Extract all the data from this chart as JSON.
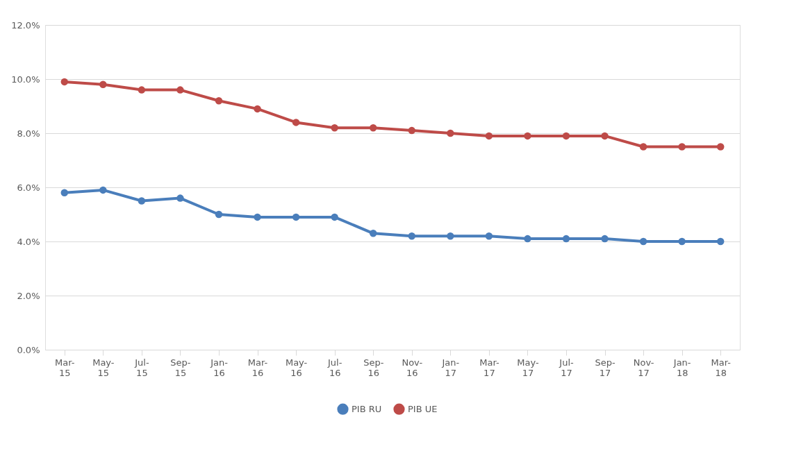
{
  "chart_data": {
    "type": "line",
    "categories": [
      "Mar-15",
      "May-15",
      "Jul-15",
      "Sep-15",
      "Jan-16",
      "Mar-16",
      "May-16",
      "Jul-16",
      "Sep-16",
      "Nov-16",
      "Jan-17",
      "Mar-17",
      "May-17",
      "Jul-17",
      "Sep-17",
      "Nov-17",
      "Jan-18",
      "Mar-18"
    ],
    "series": [
      {
        "name": "PIB RU",
        "color": "#4a7ebb",
        "values": [
          5.8,
          5.9,
          5.5,
          5.6,
          5.0,
          4.9,
          4.9,
          4.9,
          4.3,
          4.2,
          4.2,
          4.2,
          4.1,
          4.1,
          4.1,
          4.0,
          4.0,
          4.0
        ]
      },
      {
        "name": "PIB UE",
        "color": "#be4b48",
        "values": [
          9.9,
          9.8,
          9.6,
          9.6,
          9.2,
          8.9,
          8.4,
          8.2,
          8.2,
          8.1,
          8.0,
          7.9,
          7.9,
          7.9,
          7.9,
          7.5,
          7.5,
          7.5
        ]
      }
    ],
    "ylim": [
      0,
      12
    ],
    "yticks": [
      {
        "value": 0,
        "label": "0.0%"
      },
      {
        "value": 2,
        "label": "2.0%"
      },
      {
        "value": 4,
        "label": "4.0%"
      },
      {
        "value": 6,
        "label": "6.0%"
      },
      {
        "value": 8,
        "label": "8.0%"
      },
      {
        "value": 10,
        "label": "10.0%"
      },
      {
        "value": 12,
        "label": "12.0%"
      }
    ],
    "grid": "y",
    "legend": "bottom",
    "marker": "circle",
    "line_style": "solid"
  }
}
